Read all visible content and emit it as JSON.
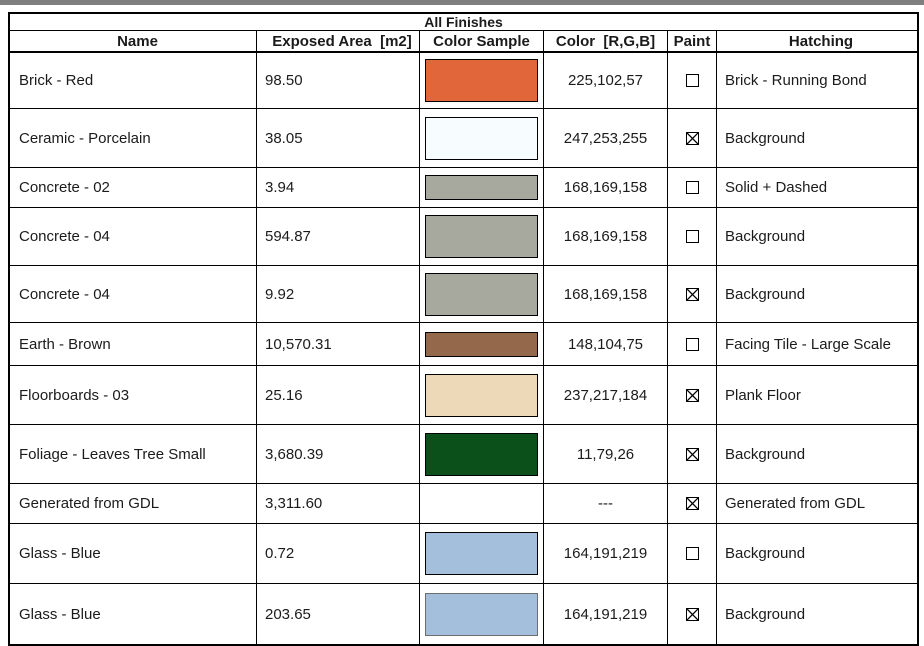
{
  "window": {
    "top_bar_color": "#7f7f7f"
  },
  "table": {
    "title": "All Finishes",
    "columns": [
      "Name",
      "Exposed Area  [m2]",
      "Color Sample",
      "Color  [R,G,B]",
      "Paint",
      "Hatching"
    ],
    "rows": [
      {
        "name": "Brick - Red",
        "area": "98.50",
        "sample_color": "#E16639",
        "sample_border": "#000000",
        "rgb": "225,102,57",
        "paint": false,
        "hatching": "Brick - Running Bond"
      },
      {
        "name": "Ceramic - Porcelain",
        "area": "38.05",
        "sample_color": "#F7FDFF",
        "sample_border": "#000000",
        "rgb": "247,253,255",
        "paint": true,
        "hatching": "Background"
      },
      {
        "name": "Concrete - 02",
        "area": "3.94",
        "sample_color": "#A8A99E",
        "sample_border": "#000000",
        "rgb": "168,169,158",
        "paint": false,
        "hatching": "Solid + Dashed"
      },
      {
        "name": "Concrete - 04",
        "area": "594.87",
        "sample_color": "#A8A99E",
        "sample_border": "#000000",
        "rgb": "168,169,158",
        "paint": false,
        "hatching": "Background"
      },
      {
        "name": "Concrete - 04",
        "area": "9.92",
        "sample_color": "#A8A99E",
        "sample_border": "#000000",
        "rgb": "168,169,158",
        "paint": true,
        "hatching": "Background"
      },
      {
        "name": "Earth - Brown",
        "area": "10,570.31",
        "sample_color": "#94684B",
        "sample_border": "#000000",
        "rgb": "148,104,75",
        "paint": false,
        "hatching": "Facing Tile - Large Scale"
      },
      {
        "name": "Floorboards - 03",
        "area": "25.16",
        "sample_color": "#EDD9B8",
        "sample_border": "#000000",
        "rgb": "237,217,184",
        "paint": true,
        "hatching": "Plank Floor"
      },
      {
        "name": "Foliage - Leaves Tree Small",
        "area": "3,680.39",
        "sample_color": "#0B4F1A",
        "sample_border": "#000000",
        "rgb": "11,79,26",
        "paint": true,
        "hatching": "Background"
      },
      {
        "name": "Generated from GDL",
        "area": "3,311.60",
        "sample_color": null,
        "sample_border": null,
        "rgb": "---",
        "paint": true,
        "hatching": "Generated from GDL"
      },
      {
        "name": "Glass - Blue",
        "area": "0.72",
        "sample_color": "#A4BFDB",
        "sample_border": "#000000",
        "rgb": "164,191,219",
        "paint": false,
        "hatching": "Background"
      },
      {
        "name": "Glass - Blue",
        "area": "203.65",
        "sample_color": "#A4BFDB",
        "sample_border": "#6E6E6E",
        "rgb": "164,191,219",
        "paint": true,
        "hatching": "Background"
      }
    ]
  }
}
